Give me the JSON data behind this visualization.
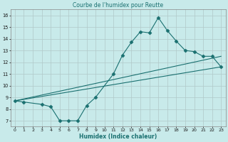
{
  "title": "Courbe de l'humidex pour Reutte",
  "xlabel": "Humidex (Indice chaleur)",
  "bg_color": "#c8eaea",
  "line_color": "#1a7070",
  "grid_color": "#b0c8c8",
  "xlim": [
    -0.5,
    23.5
  ],
  "ylim": [
    6.5,
    16.5
  ],
  "xticks": [
    0,
    1,
    2,
    3,
    4,
    5,
    6,
    7,
    8,
    9,
    10,
    11,
    12,
    13,
    14,
    15,
    16,
    17,
    18,
    19,
    20,
    21,
    22,
    23
  ],
  "yticks": [
    7,
    8,
    9,
    10,
    11,
    12,
    13,
    14,
    15,
    16
  ],
  "line1_x": [
    0,
    1,
    3,
    4,
    5,
    6,
    7,
    8,
    9,
    11,
    12,
    13,
    14,
    15,
    16,
    17,
    18,
    19,
    20,
    21,
    22,
    23
  ],
  "line1_y": [
    8.7,
    8.6,
    8.4,
    8.2,
    7.0,
    7.0,
    7.0,
    8.3,
    9.0,
    11.0,
    12.6,
    13.7,
    14.6,
    14.5,
    15.8,
    14.7,
    13.8,
    13.0,
    12.9,
    12.5,
    12.5,
    11.6
  ],
  "line2_x": [
    0,
    23
  ],
  "line2_y": [
    8.7,
    11.6
  ],
  "line3_x": [
    0,
    23
  ],
  "line3_y": [
    8.7,
    12.5
  ]
}
